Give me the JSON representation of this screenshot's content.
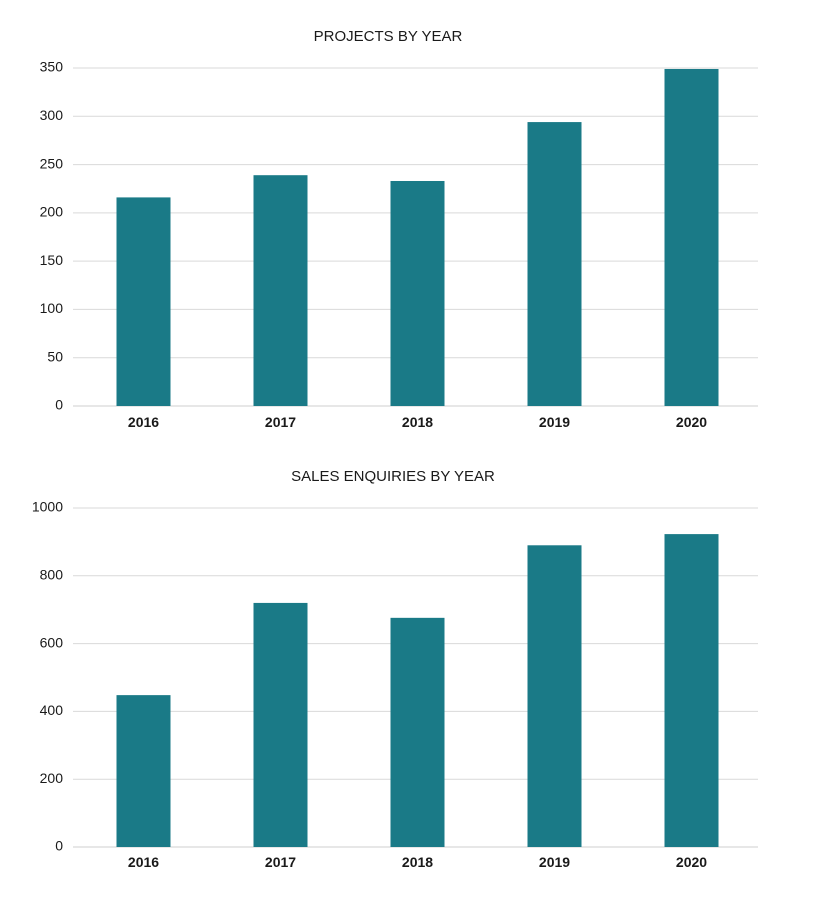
{
  "chart_data": [
    {
      "type": "bar",
      "title": "PROJECTS BY YEAR",
      "categories": [
        "2016",
        "2017",
        "2018",
        "2019",
        "2020"
      ],
      "values": [
        216,
        239,
        233,
        294,
        349
      ],
      "ylim": [
        0,
        350
      ],
      "yticks": [
        0,
        50,
        100,
        150,
        200,
        250,
        300,
        350
      ],
      "grid": true,
      "bar_color": "#1a7a87"
    },
    {
      "type": "bar",
      "title": "SALES ENQUIRIES BY YEAR",
      "categories": [
        "2016",
        "2017",
        "2018",
        "2019",
        "2020"
      ],
      "values": [
        448,
        720,
        676,
        890,
        923
      ],
      "ylim": [
        0,
        1000
      ],
      "yticks": [
        0,
        200,
        400,
        600,
        800,
        1000
      ],
      "grid": true,
      "bar_color": "#1a7a87"
    }
  ]
}
